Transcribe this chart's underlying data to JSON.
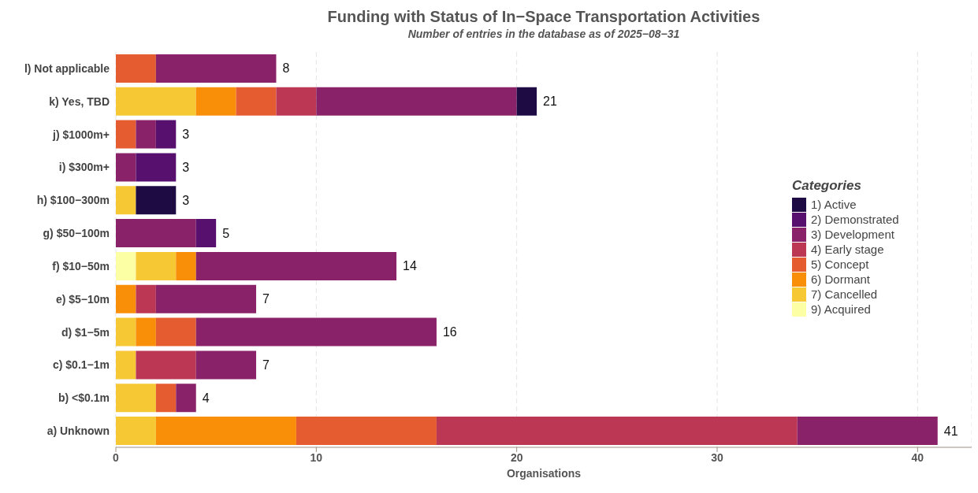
{
  "chart_data": {
    "type": "bar",
    "orientation": "horizontal",
    "stacked": true,
    "title": "Funding with Status of In−Space Transportation Activities",
    "subtitle": "Number of entries in the database as of 2025−08−31",
    "xlabel": "Organisations",
    "legend_title": "Categories",
    "legend": "right",
    "grid": "x",
    "categories": [
      "l) Not applicable",
      "k) Yes, TBD",
      "j)  $1000m+",
      "i)  $300m+",
      "h)  $100−300m",
      "g)  $50−100m",
      "f)  $10−50m",
      "e)  $5−10m",
      "d)  $1−5m",
      "c)  $0.1−1m",
      "b)  <$0.1m",
      "a) Unknown"
    ],
    "xlim": [
      0,
      42.7
    ],
    "xticks": [
      0,
      10,
      20,
      30,
      40
    ],
    "series": [
      {
        "name": "9)  Acquired",
        "color": "#fcffa4",
        "values": [
          null,
          null,
          null,
          null,
          null,
          null,
          1,
          null,
          null,
          null,
          null,
          null
        ]
      },
      {
        "name": "7)  Cancelled",
        "color": "#f6c834",
        "values": [
          null,
          4,
          null,
          null,
          1,
          null,
          2,
          null,
          1,
          1,
          2,
          2
        ]
      },
      {
        "name": "6)  Dormant",
        "color": "#f98e09",
        "values": [
          null,
          2,
          null,
          null,
          null,
          null,
          1,
          1,
          1,
          null,
          null,
          7
        ]
      },
      {
        "name": "5)  Concept",
        "color": "#e55c30",
        "values": [
          2,
          2,
          1,
          null,
          null,
          null,
          null,
          null,
          2,
          null,
          1,
          7
        ]
      },
      {
        "name": "4)  Early stage",
        "color": "#bc3754",
        "values": [
          null,
          2,
          null,
          null,
          null,
          null,
          null,
          1,
          null,
          3,
          null,
          18
        ]
      },
      {
        "name": "3)  Development",
        "color": "#8a226a",
        "values": [
          6,
          10,
          1,
          1,
          null,
          4,
          10,
          5,
          12,
          3,
          1,
          7
        ]
      },
      {
        "name": "2)  Demonstrated",
        "color": "#57106e",
        "values": [
          null,
          null,
          1,
          2,
          null,
          1,
          null,
          null,
          null,
          null,
          null,
          null
        ]
      },
      {
        "name": "1)  Active",
        "color": "#1e0b44",
        "values": [
          null,
          1,
          null,
          null,
          2,
          null,
          null,
          null,
          null,
          null,
          null,
          null
        ]
      }
    ],
    "totals": [
      "8",
      "21",
      "3",
      "3",
      "3",
      "5",
      "14",
      "7",
      "16",
      "7",
      "4",
      "41"
    ]
  }
}
